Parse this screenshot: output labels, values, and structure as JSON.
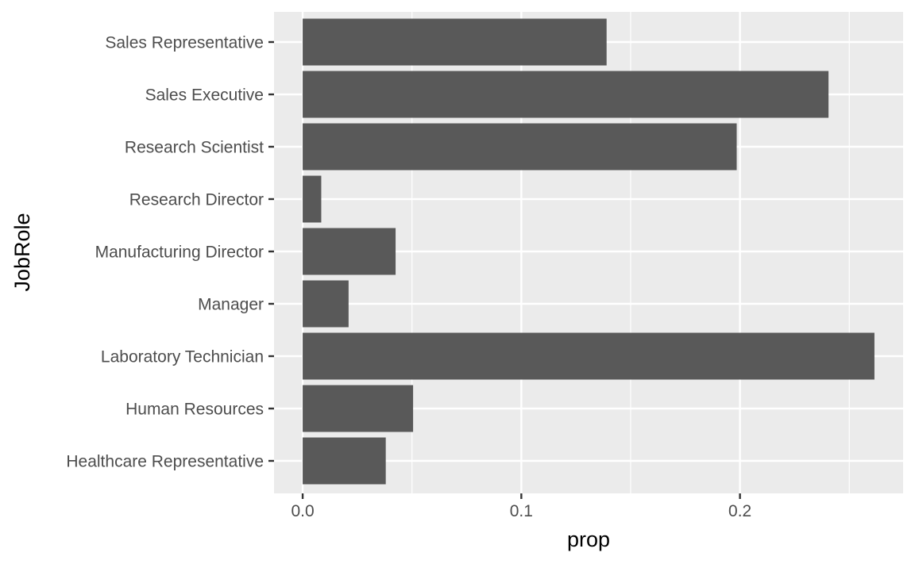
{
  "chart_data": {
    "type": "bar",
    "orientation": "horizontal",
    "categories": [
      "Healthcare Representative",
      "Human Resources",
      "Laboratory Technician",
      "Manager",
      "Manufacturing Director",
      "Research Director",
      "Research Scientist",
      "Sales Executive",
      "Sales Representative"
    ],
    "values": [
      0.038,
      0.0505,
      0.2615,
      0.021,
      0.0425,
      0.0085,
      0.1985,
      0.2405,
      0.139
    ],
    "xlabel": "prop",
    "ylabel": "JobRole",
    "xlim": [
      -0.0131,
      0.2746
    ],
    "xticks": [
      0.0,
      0.1,
      0.2
    ],
    "xtick_labels": [
      "0.0",
      "0.1",
      "0.2"
    ],
    "grid": true,
    "legend": "none"
  },
  "colors": {
    "panel_background": "#ebebeb",
    "grid_line": "#ffffff",
    "bar_fill": "#595959",
    "tick_text": "#4d4d4d",
    "axis_title": "#000000"
  }
}
